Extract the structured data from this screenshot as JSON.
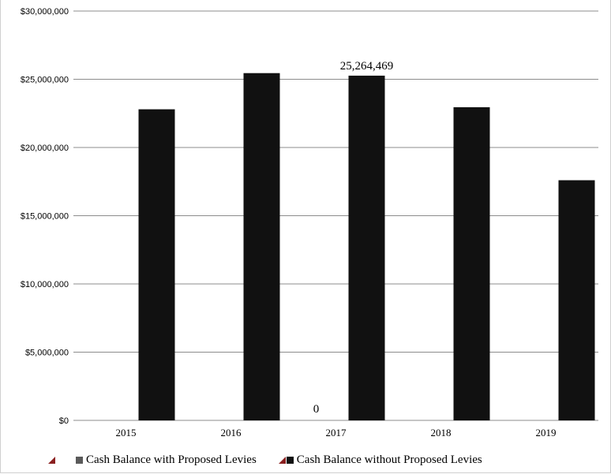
{
  "chart_data": {
    "type": "bar",
    "categories": [
      "2015",
      "2016",
      "2017",
      "2018",
      "2019"
    ],
    "series": [
      {
        "name": "Cash Balance with Proposed Levies",
        "values": [
          null,
          null,
          0,
          null,
          null
        ],
        "color": "#5a5a5a"
      },
      {
        "name": "Cash Balance without Proposed Levies",
        "values": [
          22800000,
          25450000,
          25264469,
          22950000,
          17600000
        ],
        "color": "#111111"
      }
    ],
    "data_labels": [
      {
        "series": 0,
        "category": "2017",
        "text": "0"
      },
      {
        "series": 1,
        "category": "2017",
        "text": "25,264,469"
      }
    ],
    "y_ticks": [
      "$0",
      "$5,000,000",
      "$10,000,000",
      "$15,000,000",
      "$20,000,000",
      "$25,000,000",
      "$30,000,000"
    ],
    "ylim": [
      0,
      30000000
    ],
    "title": "",
    "xlabel": "",
    "ylabel": "",
    "grid": true,
    "legend_position": "bottom",
    "gridline_color": "#8c8c8c",
    "legend_marker_color": "#8b2020"
  }
}
